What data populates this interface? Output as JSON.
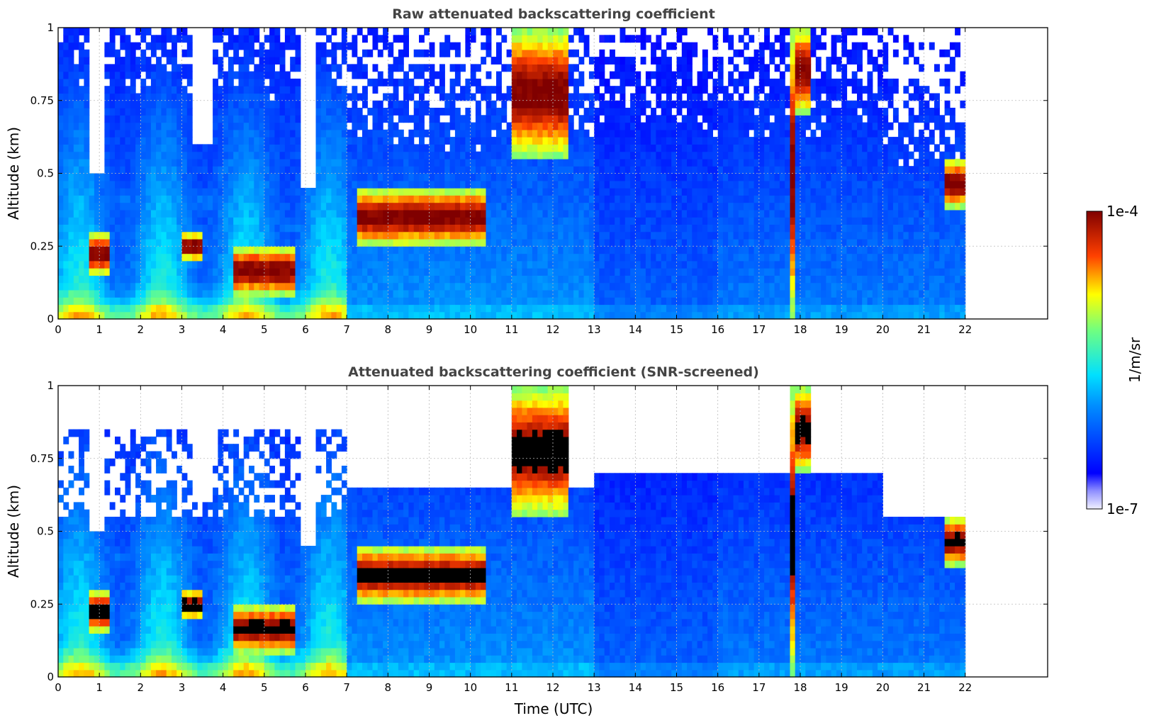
{
  "chart_data": [
    {
      "type": "heatmap",
      "title": "Raw attenuated backscattering coefficient",
      "xlabel": "",
      "ylabel": "Altitude (km)",
      "xlim": [
        0,
        24
      ],
      "ylim": [
        0,
        1
      ],
      "x_ticks": [
        "0",
        "1",
        "2",
        "3",
        "4",
        "5",
        "6",
        "7",
        "8",
        "9",
        "10",
        "11",
        "12",
        "13",
        "14",
        "15",
        "16",
        "17",
        "18",
        "19",
        "20",
        "21",
        "22"
      ],
      "y_ticks": [
        "0",
        "0.25",
        "0.5",
        "0.75",
        "1"
      ],
      "grid": true,
      "data_extent_hours": [
        0,
        22
      ],
      "features": [
        {
          "name": "dense layer",
          "t": [
            0.8,
            1.2
          ],
          "alt": [
            0.15,
            0.3
          ]
        },
        {
          "name": "dense layer",
          "t": [
            3.0,
            3.5
          ],
          "alt": [
            0.2,
            0.3
          ]
        },
        {
          "name": "dense layer",
          "t": [
            4.2,
            5.8
          ],
          "alt": [
            0.08,
            0.25
          ]
        },
        {
          "name": "elevated layer",
          "t": [
            7.2,
            10.4
          ],
          "alt": [
            0.25,
            0.45
          ]
        },
        {
          "name": "upper cloud",
          "t": [
            11.0,
            12.4
          ],
          "alt": [
            0.55,
            1.0
          ]
        },
        {
          "name": "vertical streak",
          "t": [
            17.75,
            17.85
          ],
          "alt": [
            0,
            1.0
          ]
        },
        {
          "name": "upper cloud",
          "t": [
            17.9,
            18.3
          ],
          "alt": [
            0.7,
            1.0
          ]
        },
        {
          "name": "layer",
          "t": [
            21.5,
            21.95
          ],
          "alt": [
            0.38,
            0.55
          ]
        }
      ]
    },
    {
      "type": "heatmap",
      "title": "Attenuated backscattering coefficient (SNR-screened)",
      "xlabel": "Time (UTC)",
      "ylabel": "Altitude (km)",
      "xlim": [
        0,
        24
      ],
      "ylim": [
        0,
        1
      ],
      "x_ticks": [
        "0",
        "1",
        "2",
        "3",
        "4",
        "5",
        "6",
        "7",
        "8",
        "9",
        "10",
        "11",
        "12",
        "13",
        "14",
        "15",
        "16",
        "17",
        "18",
        "19",
        "20",
        "21",
        "22"
      ],
      "y_ticks": [
        "0",
        "0.25",
        "0.5",
        "0.75",
        "1"
      ],
      "grid": true,
      "data_extent_hours": [
        0,
        22
      ]
    }
  ],
  "colorbar": {
    "label": "1/m/sr",
    "max_label": "1e-4",
    "min_label": "1e-7",
    "colormap": "jet",
    "scale": "log"
  },
  "colors": {
    "title": "#444444",
    "grid": "#bbbbbb",
    "saturated": "#800000",
    "screened_out": "#000000"
  }
}
